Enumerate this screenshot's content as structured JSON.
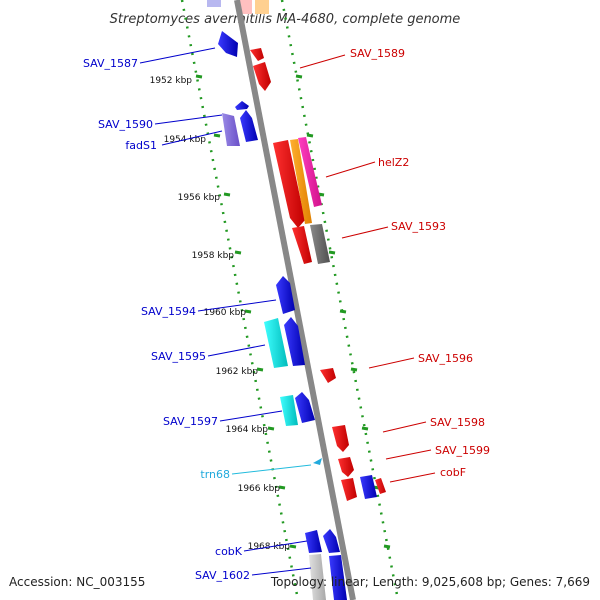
{
  "title": "Streptomyces avermitilis MA-4680, complete genome",
  "footer": {
    "accession": "Accession: NC_003155",
    "summary": "Topology: linear; Length: 9,025,608 bp; Genes: 7,669"
  },
  "ticks": [
    "1952 kbp",
    "1954 kbp",
    "1956 kbp",
    "1958 kbp",
    "1960 kbp",
    "1962 kbp",
    "1964 kbp",
    "1966 kbp",
    "1968 kbp"
  ],
  "labels_left": [
    "SAV_1587",
    "SAV_1590",
    "fadS1",
    "SAV_1594",
    "SAV_1595",
    "SAV_1597",
    "trn68",
    "cobK",
    "SAV_1602"
  ],
  "labels_right": [
    "SAV_1589",
    "helZ2",
    "SAV_1593",
    "SAV_1596",
    "SAV_1598",
    "SAV_1599",
    "cobF"
  ],
  "colors": {
    "forward_gene": "#0000ee",
    "reverse_gene": "#ee0000",
    "cyan_gene": "#00dddd",
    "trna": "#22aadd",
    "backbone": "#888888",
    "tick": "#229922"
  }
}
